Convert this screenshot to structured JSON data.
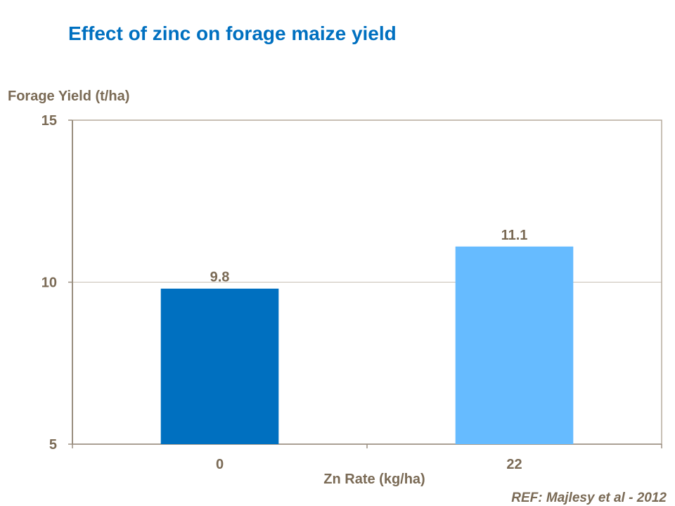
{
  "chart_data": {
    "type": "bar",
    "title": "Effect of zinc on forage maize yield",
    "xlabel": "Zn Rate (kg/ha)",
    "ylabel": "Forage Yield (t/ha)",
    "categories": [
      "0",
      "22"
    ],
    "values": [
      9.8,
      11.1
    ],
    "data_labels": [
      "9.8",
      "11.1"
    ],
    "colors": [
      "#0070c0",
      "#66bbff"
    ],
    "ylim": [
      5,
      15
    ],
    "yticks": [
      "5",
      "10",
      "15"
    ],
    "grid": true
  },
  "footer": {
    "reference": "REF: Majlesy et al  - 2012"
  }
}
